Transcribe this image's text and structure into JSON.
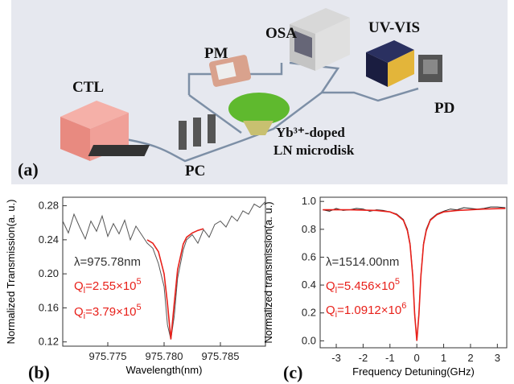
{
  "diagram": {
    "panel_label": "(a)",
    "labels": {
      "ctl": "CTL",
      "pc": "PC",
      "pm": "PM",
      "osa": "OSA",
      "uvvis": "UV-VIS",
      "pd": "PD",
      "disk_line1": "Yb³⁺-doped",
      "disk_line2": "LN microdisk"
    }
  },
  "chart_data": [
    {
      "type": "line",
      "panel_label": "(b)",
      "xlabel": "Wavelength(nm)",
      "ylabel": "Normalized Transmission(a. u.)",
      "xlim": [
        975.771,
        975.789
      ],
      "xticks": [
        {
          "value": 975.775,
          "label": "975.775"
        },
        {
          "value": 975.78,
          "label": "975.780"
        },
        {
          "value": 975.785,
          "label": "975.785"
        }
      ],
      "ylim": [
        0.115,
        0.29
      ],
      "yticks": [
        0.12,
        0.16,
        {
          "value": 0.2,
          "label": "0.20"
        },
        0.24,
        0.28
      ],
      "series": [
        {
          "color": "#555555",
          "x": [
            975.771,
            975.7715,
            975.772,
            975.7725,
            975.773,
            975.7735,
            975.774,
            975.7745,
            975.775,
            975.7755,
            975.776,
            975.7765,
            975.777,
            975.7775,
            975.778,
            975.7785,
            975.779,
            975.7795,
            975.78,
            975.7803,
            975.7806,
            975.7809,
            975.7812,
            975.7817,
            975.782,
            975.7825,
            975.783,
            975.7835,
            975.784,
            975.7845,
            975.785,
            975.7855,
            975.786,
            975.7865,
            975.787,
            975.7875,
            975.788,
            975.7885,
            975.789
          ],
          "values": [
            0.262,
            0.248,
            0.27,
            0.255,
            0.241,
            0.262,
            0.25,
            0.268,
            0.244,
            0.259,
            0.247,
            0.263,
            0.24,
            0.256,
            0.246,
            0.236,
            0.23,
            0.212,
            0.185,
            0.14,
            0.123,
            0.15,
            0.195,
            0.228,
            0.24,
            0.246,
            0.236,
            0.252,
            0.243,
            0.258,
            0.262,
            0.255,
            0.268,
            0.262,
            0.274,
            0.27,
            0.282,
            0.278,
            0.285
          ]
        },
        {
          "color": "#e8201a",
          "x": [
            975.7785,
            975.779,
            975.7795,
            975.78,
            975.7803,
            975.7806,
            975.7809,
            975.7812,
            975.7817,
            975.782,
            975.7825,
            975.783,
            975.7835
          ],
          "values": [
            0.24,
            0.236,
            0.226,
            0.2,
            0.165,
            0.123,
            0.165,
            0.205,
            0.235,
            0.243,
            0.248,
            0.251,
            0.253
          ]
        }
      ],
      "annotations": [
        {
          "parts": [
            "λ=975.78nm"
          ],
          "color": "#333333"
        },
        {
          "parts": [
            "Q",
            "l",
            "=2.55×10",
            "5"
          ],
          "color": "#e8201a"
        },
        {
          "parts": [
            "Q",
            "i",
            "=3.79×10",
            "5"
          ],
          "color": "#e8201a"
        }
      ]
    },
    {
      "type": "line",
      "panel_label": "(c)",
      "xlabel": "Frequency Detuning(GHz)",
      "ylabel": "Normalized transmission(a. u.)",
      "xlim": [
        -3.6,
        3.35
      ],
      "xticks": [
        -3,
        -2,
        -1,
        0,
        1,
        2,
        3
      ],
      "ylim": [
        -0.05,
        1.03
      ],
      "yticks": [
        {
          "value": 0,
          "label": "0.0"
        },
        0.2,
        0.4,
        0.6,
        0.8,
        {
          "value": 1,
          "label": "1.0"
        }
      ],
      "series": [
        {
          "color": "#222222",
          "x": [
            -3.5,
            -3.25,
            -3,
            -2.75,
            -2.5,
            -2.25,
            -2,
            -1.75,
            -1.5,
            -1.25,
            -1,
            -0.75,
            -0.5,
            -0.35,
            -0.25,
            -0.15,
            -0.08,
            0,
            0.08,
            0.15,
            0.25,
            0.35,
            0.5,
            0.75,
            1,
            1.25,
            1.5,
            1.75,
            2,
            2.25,
            2.5,
            2.75,
            3,
            3.3
          ],
          "values": [
            0.94,
            0.93,
            0.95,
            0.935,
            0.94,
            0.95,
            0.945,
            0.93,
            0.94,
            0.935,
            0.925,
            0.91,
            0.87,
            0.8,
            0.7,
            0.47,
            0.2,
            0.0,
            0.2,
            0.47,
            0.7,
            0.8,
            0.87,
            0.91,
            0.93,
            0.945,
            0.94,
            0.955,
            0.95,
            0.945,
            0.95,
            0.96,
            0.96,
            0.955
          ]
        },
        {
          "color": "#e8201a",
          "x": [
            -3.5,
            -2.5,
            -1.5,
            -1,
            -0.75,
            -0.5,
            -0.35,
            -0.25,
            -0.15,
            -0.08,
            0,
            0.08,
            0.15,
            0.25,
            0.35,
            0.5,
            0.75,
            1,
            1.5,
            2.5,
            3.3
          ],
          "values": [
            0.94,
            0.94,
            0.935,
            0.925,
            0.905,
            0.865,
            0.79,
            0.69,
            0.46,
            0.19,
            0.0,
            0.19,
            0.46,
            0.69,
            0.79,
            0.865,
            0.905,
            0.925,
            0.935,
            0.945,
            0.95
          ]
        }
      ],
      "annotations": [
        {
          "parts": [
            "λ=1514.00nm"
          ],
          "color": "#333333"
        },
        {
          "parts": [
            "Q",
            "l",
            "=5.456×10",
            "5"
          ],
          "color": "#e8201a"
        },
        {
          "parts": [
            "Q",
            "i",
            "=1.0912×10",
            "6"
          ],
          "color": "#e8201a"
        }
      ]
    }
  ]
}
